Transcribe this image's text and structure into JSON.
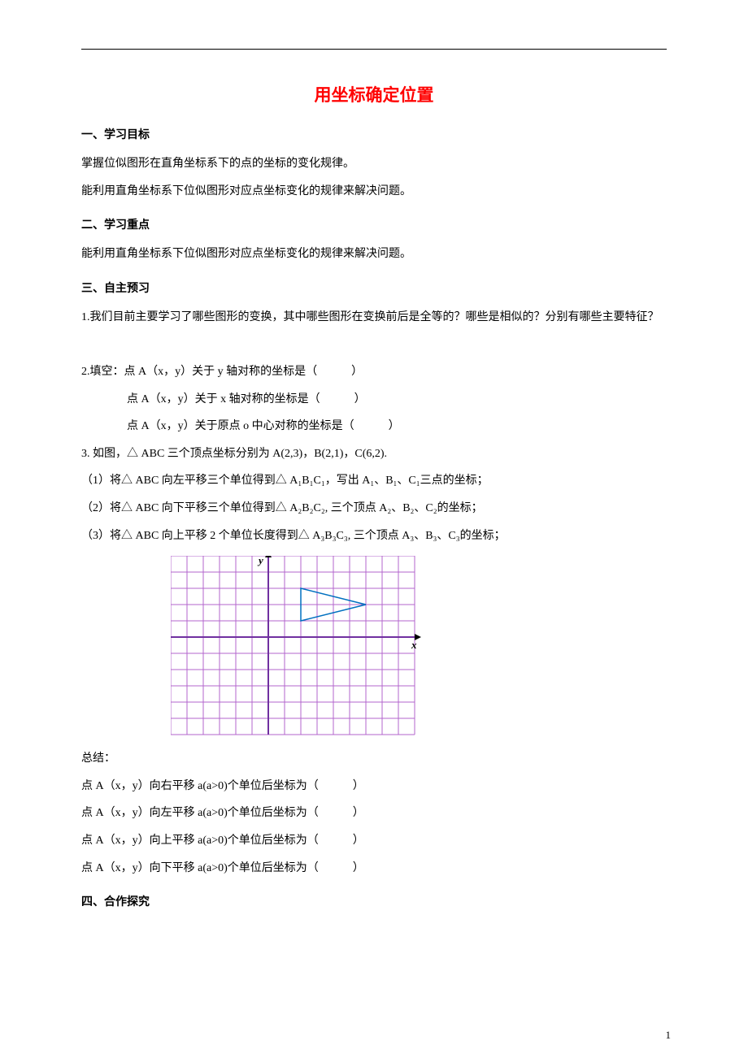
{
  "title": "用坐标确定位置",
  "section1": {
    "heading": "一、学习目标",
    "line1": "掌握位似图形在直角坐标系下的点的坐标的变化规律。",
    "line2": "能利用直角坐标系下位似图形对应点坐标变化的规律来解决问题。"
  },
  "section2": {
    "heading": "二、学习重点",
    "line1": "能利用直角坐标系下位似图形对应点坐标变化的规律来解决问题。"
  },
  "section3": {
    "heading": "三、自主预习",
    "q1": "1.我们目前主要学习了哪些图形的变换，其中哪些图形在变换前后是全等的？哪些是相似的？分别有哪些主要特征？",
    "q2_l1": "2.填空：点 A（x，y）关于 y 轴对称的坐标是（　　　）",
    "q2_l2": "点 A（x，y）关于 x 轴对称的坐标是（　　　）",
    "q2_l3": "点 A（x，y）关于原点 o 中心对称的坐标是（　　　）",
    "q3_intro": "3. 如图，△ ABC 三个顶点坐标分别为 A(2,3)，B(2,1)，C(6,2).",
    "q3_1": "（1）将△ ABC 向左平移三个单位得到△ A₁B₁C₁，写出 A₁、B₁、C₁三点的坐标；",
    "q3_2": "（2）将△ ABC 向下平移三个单位得到△ A₂B₂C₂, 三个顶点 A₂、B₂、C₂的坐标；",
    "q3_3": "（3）将△ ABC 向上平移 2 个单位长度得到△ A₃B₃C₃, 三个顶点 A₃、B₃、C₃的坐标；",
    "summary_heading": "总结：",
    "sum1": "点 A（x，y）向右平移 a(a>0)个单位后坐标为（　　　）",
    "sum2": "点 A（x，y）向左平移 a(a>0)个单位后坐标为（　　　）",
    "sum3": "点 A（x，y）向上平移 a(a>0)个单位后坐标为（　　　）",
    "sum4": "点 A（x，y）向下平移 a(a>0)个单位后坐标为（　　　）"
  },
  "section4": {
    "heading": "四、合作探究"
  },
  "chart": {
    "type": "line",
    "grid_color": "#b366cc",
    "axis_color": "#7030a0",
    "triangle_color": "#0070c0",
    "background_color": "#ffffff",
    "xlim": [
      -6,
      9
    ],
    "ylim": [
      -6,
      5
    ],
    "cell": 20,
    "axis_stroke": 2,
    "grid_stroke": 1,
    "y_label": "y",
    "x_label": "x",
    "label_fontsize": 13,
    "triangle_points": [
      [
        2,
        3
      ],
      [
        2,
        1
      ],
      [
        6,
        2
      ]
    ]
  },
  "page_number": "1"
}
